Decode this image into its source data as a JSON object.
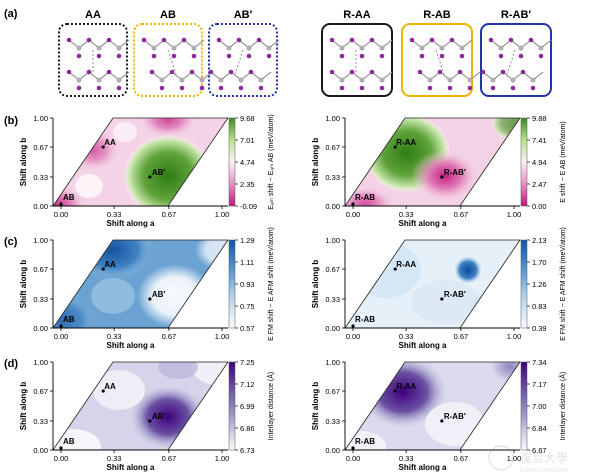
{
  "row_labels": [
    "(a)",
    "(b)",
    "(c)",
    "(d)"
  ],
  "stackings": {
    "left": [
      "AA",
      "AB",
      "AB′"
    ],
    "right": [
      "R-AA",
      "R-AB",
      "R-AB′"
    ],
    "box_colors": [
      "#1a1a1a",
      "#f0b400",
      "#2233aa"
    ]
  },
  "axis": {
    "xlabel": "Shift along a",
    "ylabel": "Shift along b",
    "xticks": [
      "0.00",
      "0.33",
      "0.67",
      "1.00"
    ],
    "yticks": [
      "1.00",
      "0.67",
      "0.33",
      "0.00"
    ]
  },
  "panels": {
    "b_left": {
      "points": [
        "AA",
        "AB′",
        "AB"
      ],
      "colorbar_ticks": [
        "9.68",
        "7.01",
        "4.74",
        "2.35",
        "-0.09"
      ],
      "colorbar_label": "Eₐₘ shift − Eₐₘ AB (meV/atom)",
      "colorbar_colors": [
        "#3d8c1f",
        "#b6e28e",
        "#f7f3f6",
        "#e890c5",
        "#c1177d"
      ]
    },
    "b_right": {
      "points": [
        "R-AA",
        "R-AB′",
        "R-AB"
      ],
      "colorbar_ticks": [
        "9.88",
        "7.41",
        "4.94",
        "2.47",
        "0.00"
      ],
      "colorbar_label": "E shift − E AB (meV/atom)",
      "colorbar_colors": [
        "#3d8c1f",
        "#b6e28e",
        "#f7f3f6",
        "#e890c5",
        "#c1177d"
      ]
    },
    "c_left": {
      "points": [
        "AA",
        "AB′",
        "AB"
      ],
      "colorbar_ticks": [
        "1.29",
        "1.11",
        "0.93",
        "0.75",
        "0.57"
      ],
      "colorbar_label": "E FM shift − E AFM shift (meV/atom)",
      "colorbar_colors": [
        "#0d56a6",
        "#4f8fcb",
        "#a8cbe5",
        "#deebf6",
        "#f7fbff"
      ]
    },
    "c_right": {
      "points": [
        "R-AA",
        "R-AB′",
        "R-AB"
      ],
      "colorbar_ticks": [
        "2.13",
        "1.70",
        "1.26",
        "0.83",
        "0.39"
      ],
      "colorbar_label": "E FM shift − E AFM shift (meV/atom)",
      "colorbar_colors": [
        "#0d56a6",
        "#4f8fcb",
        "#a8cbe5",
        "#deebf6",
        "#f7fbff"
      ]
    },
    "d_left": {
      "points": [
        "AA",
        "AB′",
        "AB"
      ],
      "colorbar_ticks": [
        "7.25",
        "7.12",
        "6.99",
        "6.86",
        "6.73"
      ],
      "colorbar_label": "Interlayer distance (Å)",
      "colorbar_colors": [
        "#3f007d",
        "#6a51a3",
        "#9e9ac8",
        "#dadaeb",
        "#fcfbfd"
      ]
    },
    "d_right": {
      "points": [
        "R-AA",
        "R-AB′",
        "R-AB"
      ],
      "colorbar_ticks": [
        "7.34",
        "7.17",
        "7.00",
        "6.84",
        "6.67"
      ],
      "colorbar_label": "Interlayer distance (Å)",
      "colorbar_colors": [
        "#3f007d",
        "#6a51a3",
        "#9e9ac8",
        "#dadaeb",
        "#fcfbfd"
      ]
    }
  },
  "watermark": "FUDAN UNIVERSITY"
}
